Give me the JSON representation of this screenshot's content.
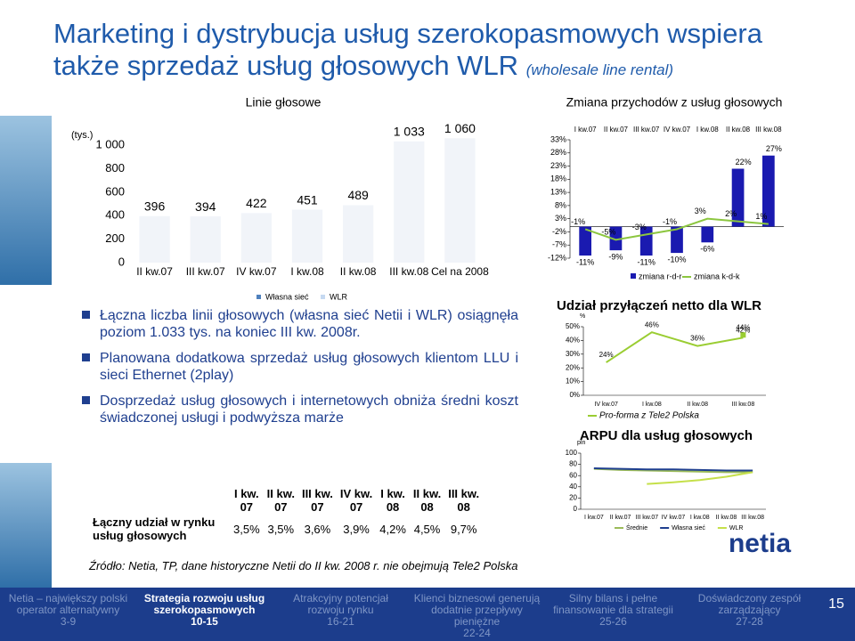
{
  "title": {
    "line1": "Marketing i dystrybucja usług szerokopasmowych wspiera",
    "line2": "także sprzedaż usług głosowych WLR",
    "note": "(wholesale line rental)"
  },
  "chart_data": [
    {
      "type": "bar",
      "title": "Linie głosowe",
      "unit": "(tys.)",
      "categories": [
        "II kw.07",
        "III kw.07",
        "IV kw.07",
        "I kw.08",
        "II kw.08",
        "III kw.08",
        "Cel na 2008"
      ],
      "values": [
        396,
        394,
        422,
        451,
        489,
        1033,
        1060
      ],
      "value_labels": [
        "396",
        "394",
        "422",
        "451",
        "489",
        "1 033",
        "1 060"
      ],
      "color": "#f1f4f9",
      "ylim": [
        0,
        1100
      ],
      "yticks": [
        0,
        200,
        400,
        600,
        800,
        {
          "value": 1000,
          "label": "1 000"
        }
      ],
      "legend": [
        {
          "name": "Własna sieć",
          "color": "#4f81bd"
        },
        {
          "name": "WLR",
          "color": "#c6d9f1"
        }
      ]
    },
    {
      "type": "bar_line",
      "title": "Zmiana przychodów z usług głosowych",
      "categories": [
        "I kw.07",
        "II kw.07",
        "III kw.07",
        "IV kw.07",
        "I kw.08",
        "II kw.08",
        "III kw.08"
      ],
      "series": [
        {
          "name": "zmiana r-d-r",
          "color": "#1a1ab0",
          "kind": "bar",
          "values": [
            -11,
            -9,
            -11,
            -10,
            -6,
            22,
            27
          ],
          "value_labels": [
            "-11%",
            "-9%",
            "-11%",
            "-10%",
            "-6%",
            "22%",
            "27%"
          ]
        },
        {
          "name": "zmiana k-d-k",
          "color": "#8cc63f",
          "kind": "line",
          "values": [
            -1,
            -5,
            -3,
            -1,
            3,
            2,
            1
          ],
          "value_labels": [
            "-1%",
            "-5%",
            "-3%",
            "-1%",
            "3%",
            "2%",
            "1%"
          ]
        }
      ],
      "ylim": [
        -12,
        33
      ],
      "yticks": [
        {
          "value": -12,
          "label": "-12%"
        },
        {
          "value": -7,
          "label": "-7%"
        },
        {
          "value": -2,
          "label": "-2%"
        },
        {
          "value": 3,
          "label": "3%"
        },
        {
          "value": 8,
          "label": "8%"
        },
        {
          "value": 13,
          "label": "13%"
        },
        {
          "value": 18,
          "label": "18%"
        },
        {
          "value": 23,
          "label": "23%"
        },
        {
          "value": 28,
          "label": "28%"
        },
        {
          "value": 33,
          "label": "33%"
        }
      ]
    },
    {
      "type": "line",
      "title": "Udział przyłączeń netto dla WLR",
      "unit": "%",
      "categories": [
        "IV kw.07",
        "I kw.08",
        "II kw.08",
        "III kw.08"
      ],
      "series": [
        {
          "name": "WLR",
          "color": "#9acd32",
          "values": [
            24,
            46,
            36,
            42
          ],
          "value_labels": [
            "24%",
            "46%",
            "36%",
            "42%"
          ],
          "show_legend": false
        },
        {
          "name": "Pro-forma z Tele2 Polska",
          "color": "#9acd32",
          "values": [
            null,
            null,
            null,
            44
          ],
          "value_labels": [
            null,
            null,
            null,
            "44%"
          ],
          "show_legend": true
        }
      ],
      "ylim": [
        0,
        50
      ],
      "yticks": [
        {
          "value": 0,
          "label": "0%"
        },
        {
          "value": 10,
          "label": "10%"
        },
        {
          "value": 20,
          "label": "20%"
        },
        {
          "value": 30,
          "label": "30%"
        },
        {
          "value": 40,
          "label": "40%"
        },
        {
          "value": 50,
          "label": "50%"
        }
      ]
    },
    {
      "type": "line",
      "title": "ARPU dla usług głosowych",
      "unit": "pln",
      "categories": [
        "I kw.07",
        "II kw.07",
        "III kw.07",
        "IV kw.07",
        "I kw.08",
        "II kw.08",
        "III kw.08"
      ],
      "series": [
        {
          "name": "Średnie",
          "color": "#9bbb59",
          "values": [
            72,
            70,
            69,
            68,
            67,
            66,
            66
          ],
          "show_legend": true
        },
        {
          "name": "Własna sieć",
          "color": "#1f3f8f",
          "values": [
            73,
            72,
            71,
            71,
            70,
            69,
            69
          ],
          "show_legend": true
        },
        {
          "name": "WLR",
          "color": "#c5e04a",
          "values": [
            null,
            null,
            45,
            48,
            52,
            58,
            66
          ],
          "show_legend": true
        }
      ],
      "ylim": [
        0,
        100
      ],
      "yticks": [
        0,
        20,
        40,
        60,
        80,
        100
      ]
    }
  ],
  "bullets": [
    "Łączna liczba linii głosowych (własna sieć Netii i WLR) osiągnęła poziom 1.033 tys. na koniec III kw. 2008r.",
    "Planowana dodatkowa sprzedaż usług głosowych klientom LLU i sieci Ethernet (2play)",
    "Dosprzedaż usług głosowych i internetowych obniża średni koszt świadczonej usługi i podwyższa marże"
  ],
  "table": {
    "header": [
      {
        "q": "I kw.",
        "y": "07"
      },
      {
        "q": "II kw.",
        "y": "07"
      },
      {
        "q": "III kw.",
        "y": "07"
      },
      {
        "q": "IV kw.",
        "y": "07"
      },
      {
        "q": "I kw.",
        "y": "08"
      },
      {
        "q": "II kw.",
        "y": "08"
      },
      {
        "q": "III kw.",
        "y": "08"
      }
    ],
    "row_label": "Łączny udział w rynku usług głosowych",
    "values": [
      "3,5%",
      "3,5%",
      "3,6%",
      "3,9%",
      "4,2%",
      "4,5%",
      "9,7%"
    ]
  },
  "source": "Źródło: Netia, TP, dane historyczne Netii do II kw. 2008 r. nie obejmują Tele2 Polska",
  "logo": "netia",
  "footer": {
    "nav": [
      {
        "text": "Netia – największy polski operator alternatywny",
        "pages": "3-9"
      },
      {
        "text": "Strategia rozwoju usług szerokopasmowych",
        "pages": "10-15"
      },
      {
        "text": "Atrakcyjny potencjał rozwoju rynku",
        "pages": "16-21"
      },
      {
        "text": "Klienci biznesowi generują dodatnie przepływy pieniężne",
        "pages": "22-24"
      },
      {
        "text": "Silny bilans i pełne finansowanie dla strategii",
        "pages": "25-26"
      },
      {
        "text": "Doświadczony zespół zarządzający",
        "pages": "27-28"
      }
    ],
    "active": 1,
    "page": "15"
  }
}
